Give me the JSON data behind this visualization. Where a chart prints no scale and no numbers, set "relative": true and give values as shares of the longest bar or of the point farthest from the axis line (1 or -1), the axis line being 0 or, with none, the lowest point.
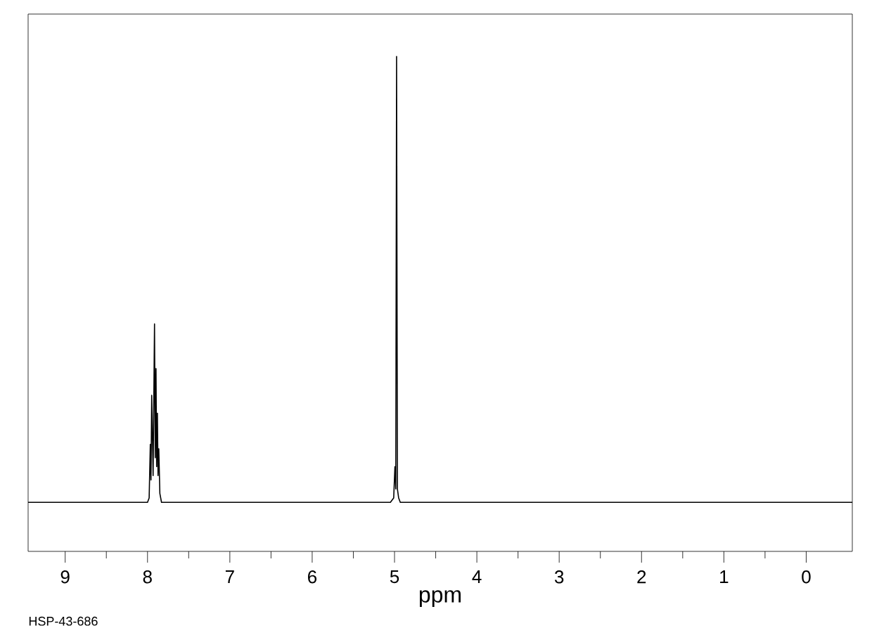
{
  "chart_data": {
    "type": "line",
    "relative": true,
    "xlabel": "ppm",
    "annotations": [
      "HSP-43-686"
    ],
    "xlim": [
      9.45,
      -0.56
    ],
    "xticks": [
      9,
      8,
      7,
      6,
      5,
      4,
      3,
      2,
      1,
      0
    ],
    "grid": false,
    "marker": "none",
    "line_style": "solid",
    "series": [
      {
        "color": "#000000",
        "x": [
          9.45,
          8.0,
          7.98,
          7.966,
          7.958,
          7.949,
          7.932,
          7.915,
          7.906,
          7.897,
          7.889,
          7.88,
          7.872,
          7.863,
          7.85,
          7.83,
          5.05,
          5.01,
          4.995,
          4.985,
          4.975,
          4.965,
          4.95,
          4.93,
          -0.56
        ],
        "values": [
          0,
          0,
          0.01,
          0.13,
          0.05,
          0.24,
          0.06,
          0.4,
          0.1,
          0.3,
          0.08,
          0.2,
          0.06,
          0.12,
          0.02,
          0,
          0,
          0.01,
          0.08,
          0.03,
          1.0,
          0.03,
          0.01,
          0,
          0
        ]
      }
    ]
  }
}
